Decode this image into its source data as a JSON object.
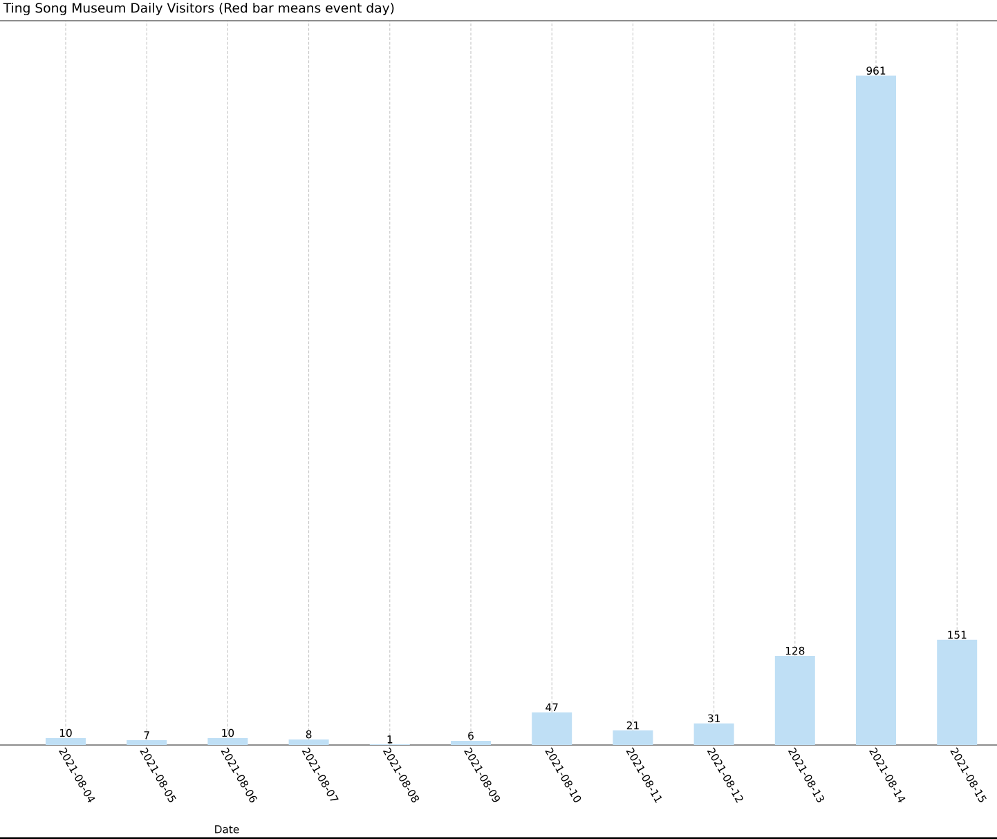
{
  "chart_data": {
    "type": "bar",
    "title": "Ting Song Museum  Daily Visitors (Red bar means event day)",
    "xlabel": "Date",
    "categories": [
      "2021-08-04",
      "2021-08-05",
      "2021-08-06",
      "2021-08-07",
      "2021-08-08",
      "2021-08-09",
      "2021-08-10",
      "2021-08-11",
      "2021-08-12",
      "2021-08-13",
      "2021-08-14",
      "2021-08-15"
    ],
    "values": [
      10,
      7,
      10,
      8,
      1,
      6,
      47,
      21,
      31,
      128,
      961,
      151
    ],
    "color": "#bfdff5",
    "data_labels": true,
    "grid": "x",
    "tick_labels": "x",
    "ylim": [
      0,
      1040
    ]
  }
}
